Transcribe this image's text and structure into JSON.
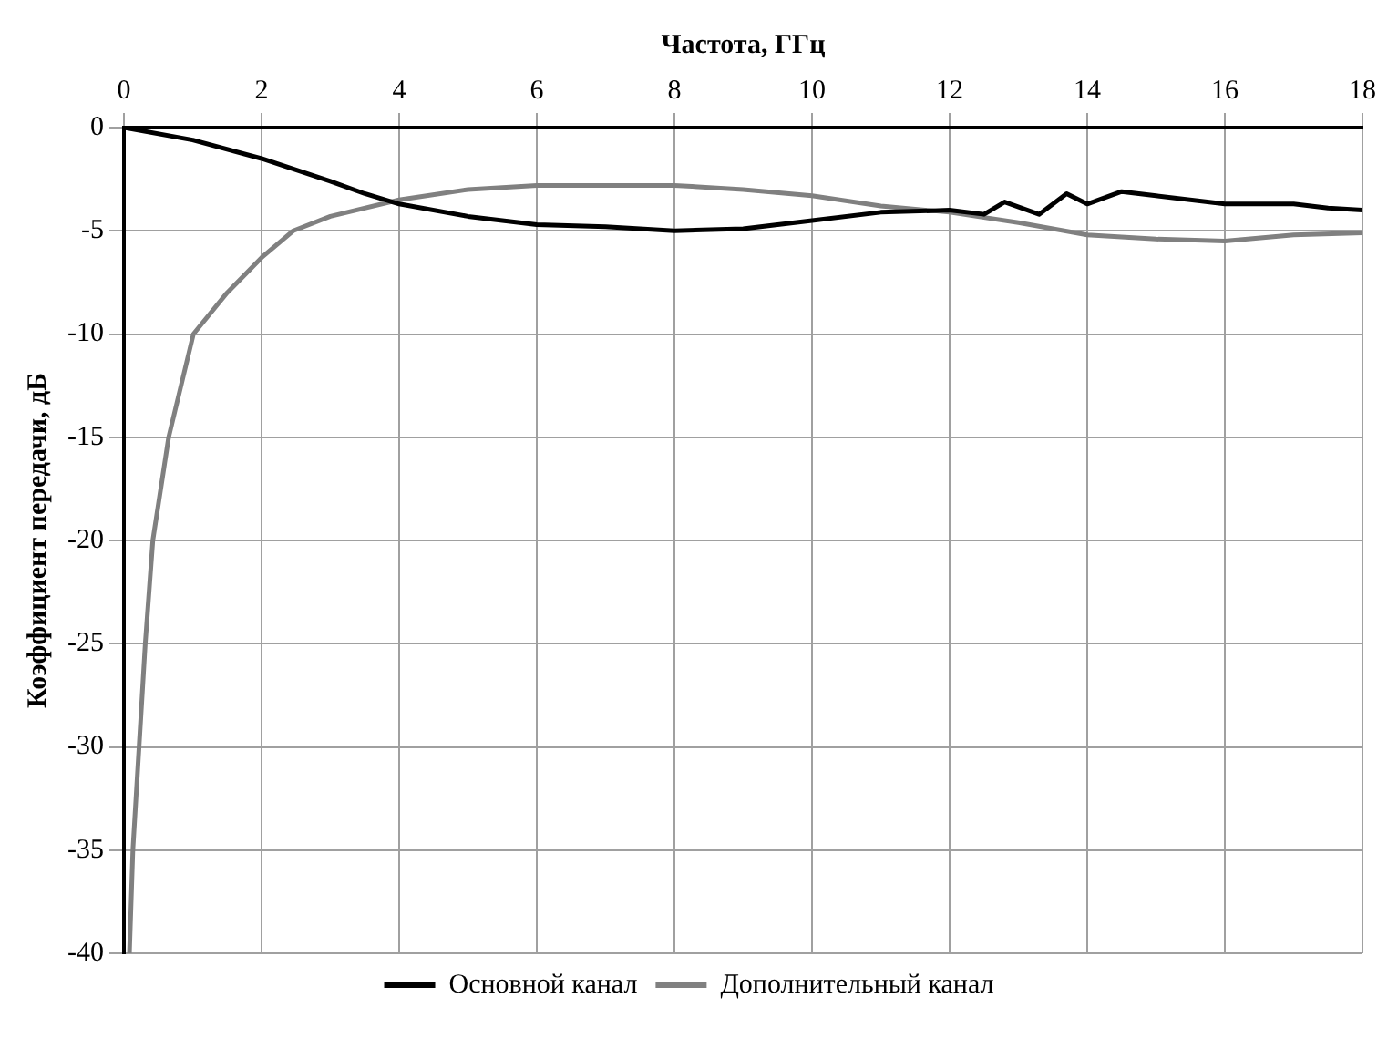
{
  "chart_data": {
    "type": "line",
    "xlabel": "Частота, ГГц",
    "ylabel": "Коэффициент передачи, дБ",
    "xlim": [
      0,
      18
    ],
    "ylim": [
      -40,
      0
    ],
    "xticks": [
      0,
      2,
      4,
      6,
      8,
      10,
      12,
      14,
      16,
      18
    ],
    "yticks": [
      -40,
      -35,
      -30,
      -25,
      -20,
      -15,
      -10,
      -5,
      0
    ],
    "grid": true,
    "legend": "bottom",
    "marker": "none",
    "line_style": "solid",
    "series": [
      {
        "name": "Основной канал",
        "color": "#000000",
        "x": [
          0,
          1,
          2,
          3,
          3.5,
          4,
          5,
          6,
          7,
          8,
          9,
          10,
          11,
          12,
          12.5,
          12.8,
          13.3,
          13.7,
          14,
          14.5,
          15,
          16,
          17,
          17.5,
          18
        ],
        "values": [
          0,
          -0.6,
          -1.5,
          -2.6,
          -3.2,
          -3.7,
          -4.3,
          -4.7,
          -4.8,
          -5.0,
          -4.9,
          -4.5,
          -4.1,
          -4.0,
          -4.2,
          -3.6,
          -4.2,
          -3.2,
          -3.7,
          -3.1,
          -3.3,
          -3.7,
          -3.7,
          -3.9,
          -4.0
        ]
      },
      {
        "name": "Дополнительный канал",
        "color": "#808080",
        "x": [
          0.08,
          0.13,
          0.22,
          0.31,
          0.42,
          0.65,
          1.01,
          1.5,
          2,
          2.46,
          3,
          4,
          5,
          6,
          7,
          8,
          9,
          10,
          11,
          12,
          13,
          14,
          15,
          16,
          17,
          18
        ],
        "values": [
          -40,
          -35,
          -30,
          -25,
          -20,
          -15,
          -10,
          -8,
          -6.3,
          -5,
          -4.3,
          -3.5,
          -3.0,
          -2.8,
          -2.8,
          -2.8,
          -3.0,
          -3.3,
          -3.8,
          -4.1,
          -4.6,
          -5.2,
          -5.4,
          -5.5,
          -5.2,
          -5.1
        ]
      }
    ]
  }
}
